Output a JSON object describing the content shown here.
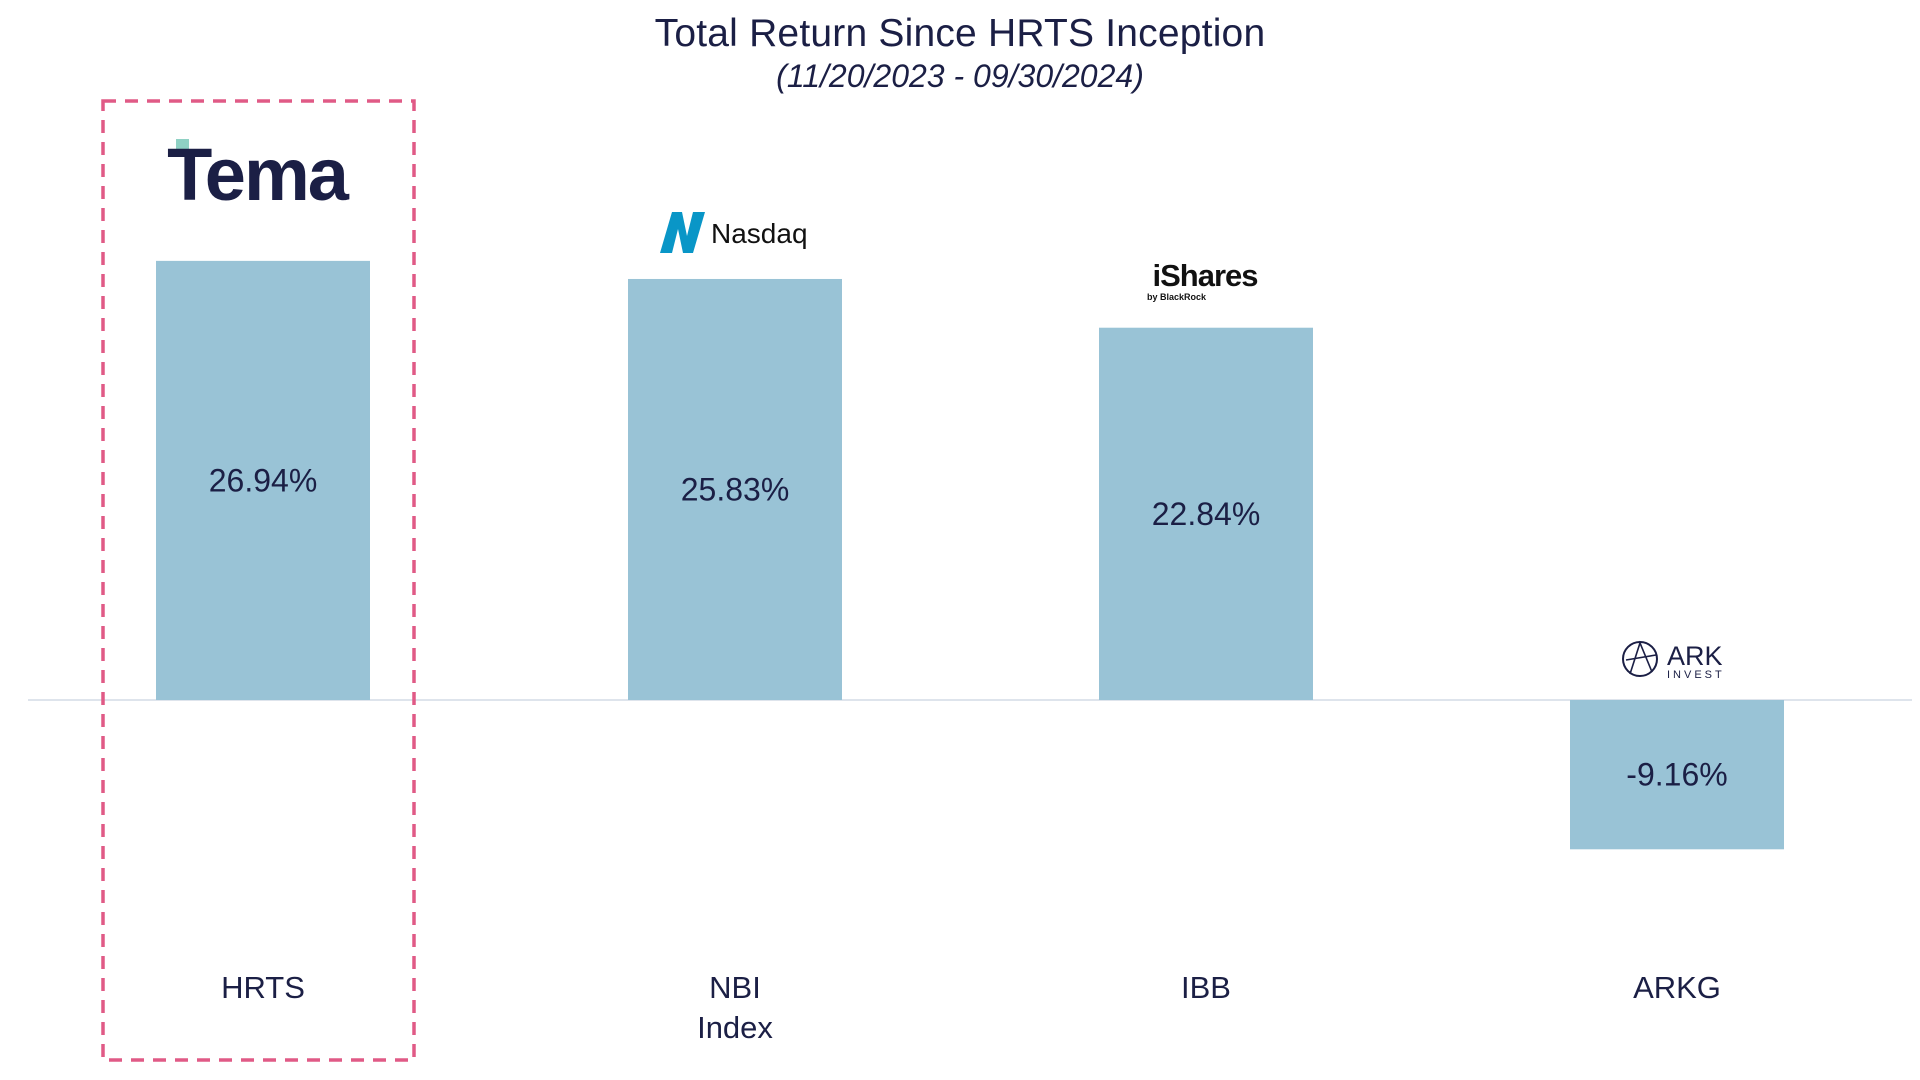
{
  "colors": {
    "bar": "#99c3d6",
    "text": "#1b1f45",
    "axis": "#d4dce6",
    "highlight": "#e05a86",
    "tema_accent": "#8fd1c4",
    "nasdaq_blue": "#0996c7",
    "ishares_black": "#111111"
  },
  "chart_data": {
    "type": "bar",
    "title": "Total Return Since HRTS Inception",
    "subtitle": "(11/20/2023 - 09/30/2024)",
    "xlabel": "",
    "ylabel": "",
    "categories": [
      "HRTS",
      "NBI Index",
      "IBB",
      "ARKG"
    ],
    "category_lines": [
      [
        "HRTS"
      ],
      [
        "NBI",
        "Index"
      ],
      [
        "IBB"
      ],
      [
        "ARKG"
      ]
    ],
    "values": [
      26.94,
      25.83,
      22.84,
      -9.16
    ],
    "data_labels": [
      "26.94%",
      "25.83%",
      "22.84%",
      "-9.16%"
    ],
    "units": "%",
    "grid": false,
    "highlighted_category": "HRTS",
    "logos": [
      {
        "category": "HRTS",
        "text": "Tema"
      },
      {
        "category": "NBI Index",
        "text": "Nasdaq"
      },
      {
        "category": "IBB",
        "text": "iShares",
        "subtext": "by BlackRock"
      },
      {
        "category": "ARKG",
        "text": "ARK",
        "subtext": "INVEST"
      }
    ]
  }
}
